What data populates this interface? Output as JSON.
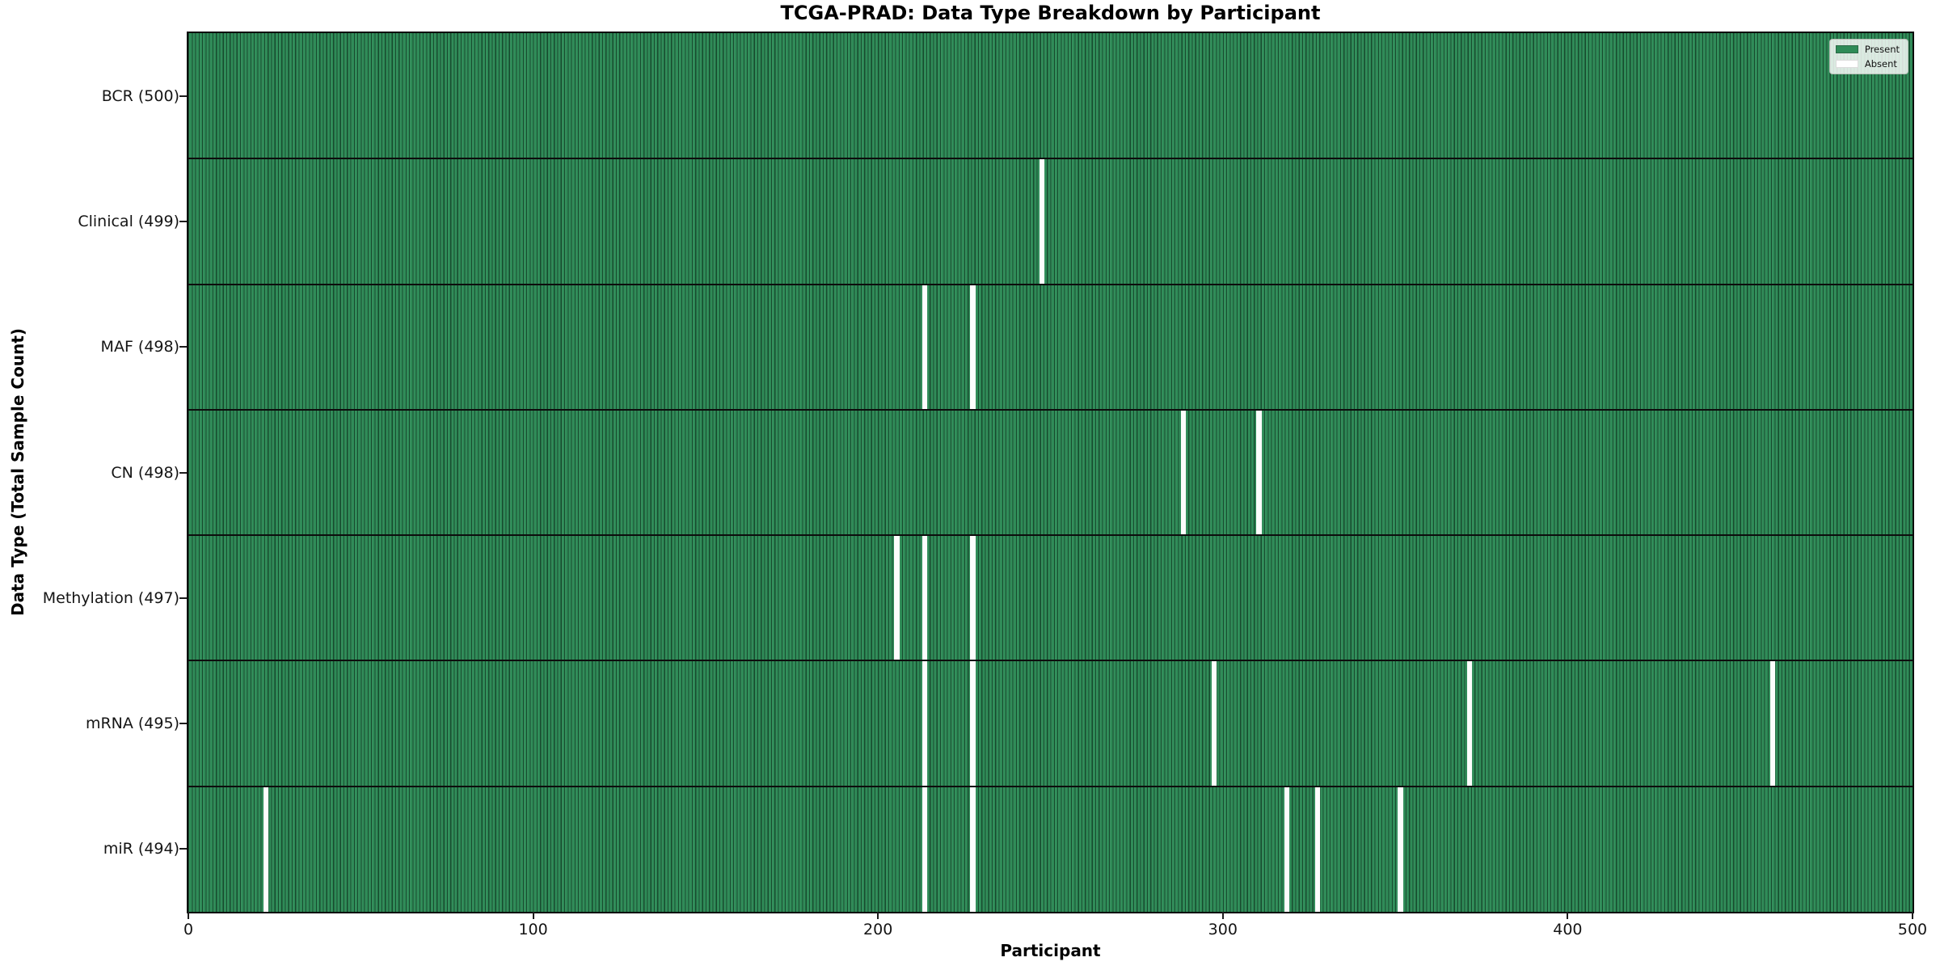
{
  "title": "TCGA-PRAD: Data Type Breakdown by Participant",
  "axes": {
    "x_label": "Participant",
    "y_label": "Data Type (Total Sample Count)",
    "x_ticks": [
      0,
      100,
      200,
      300,
      400,
      500
    ]
  },
  "legend": {
    "items": [
      {
        "label": "Present",
        "color": "#2e8b57"
      },
      {
        "label": "Absent",
        "color": "#ffffff"
      }
    ]
  },
  "colors": {
    "present_green": "#2e8b57",
    "absent_white": "#ffffff",
    "bar_edge_dark": "#123a23"
  },
  "chart_data": {
    "type": "heatmap",
    "title": "TCGA-PRAD: Data Type Breakdown by Participant",
    "xlabel": "Participant",
    "ylabel": "Data Type (Total Sample Count)",
    "xlim": [
      0,
      500
    ],
    "n_participants": 500,
    "x_ticks": [
      0,
      100,
      200,
      300,
      400,
      500
    ],
    "legend": [
      "Present",
      "Absent"
    ],
    "legend_position": "upper right",
    "encoding": "green cell = data present for participant, white cell = absent",
    "rows": [
      {
        "label": "BCR",
        "total": 500,
        "tick_label": "BCR (500)",
        "absent_participants": []
      },
      {
        "label": "Clinical",
        "total": 499,
        "tick_label": "Clinical (499)",
        "absent_participants": [
          247
        ]
      },
      {
        "label": "MAF",
        "total": 498,
        "tick_label": "MAF (498)",
        "absent_participants": [
          213,
          227
        ]
      },
      {
        "label": "CN",
        "total": 498,
        "tick_label": "CN (498)",
        "absent_participants": [
          288,
          310
        ]
      },
      {
        "label": "Methylation",
        "total": 497,
        "tick_label": "Methylation (497)",
        "absent_participants": [
          205,
          213,
          227
        ]
      },
      {
        "label": "mRNA",
        "total": 495,
        "tick_label": "mRNA (495)",
        "absent_participants": [
          213,
          227,
          297,
          371,
          459
        ]
      },
      {
        "label": "miR",
        "total": 494,
        "tick_label": "miR (494)",
        "absent_participants": [
          22,
          213,
          227,
          318,
          327,
          351
        ]
      }
    ]
  }
}
